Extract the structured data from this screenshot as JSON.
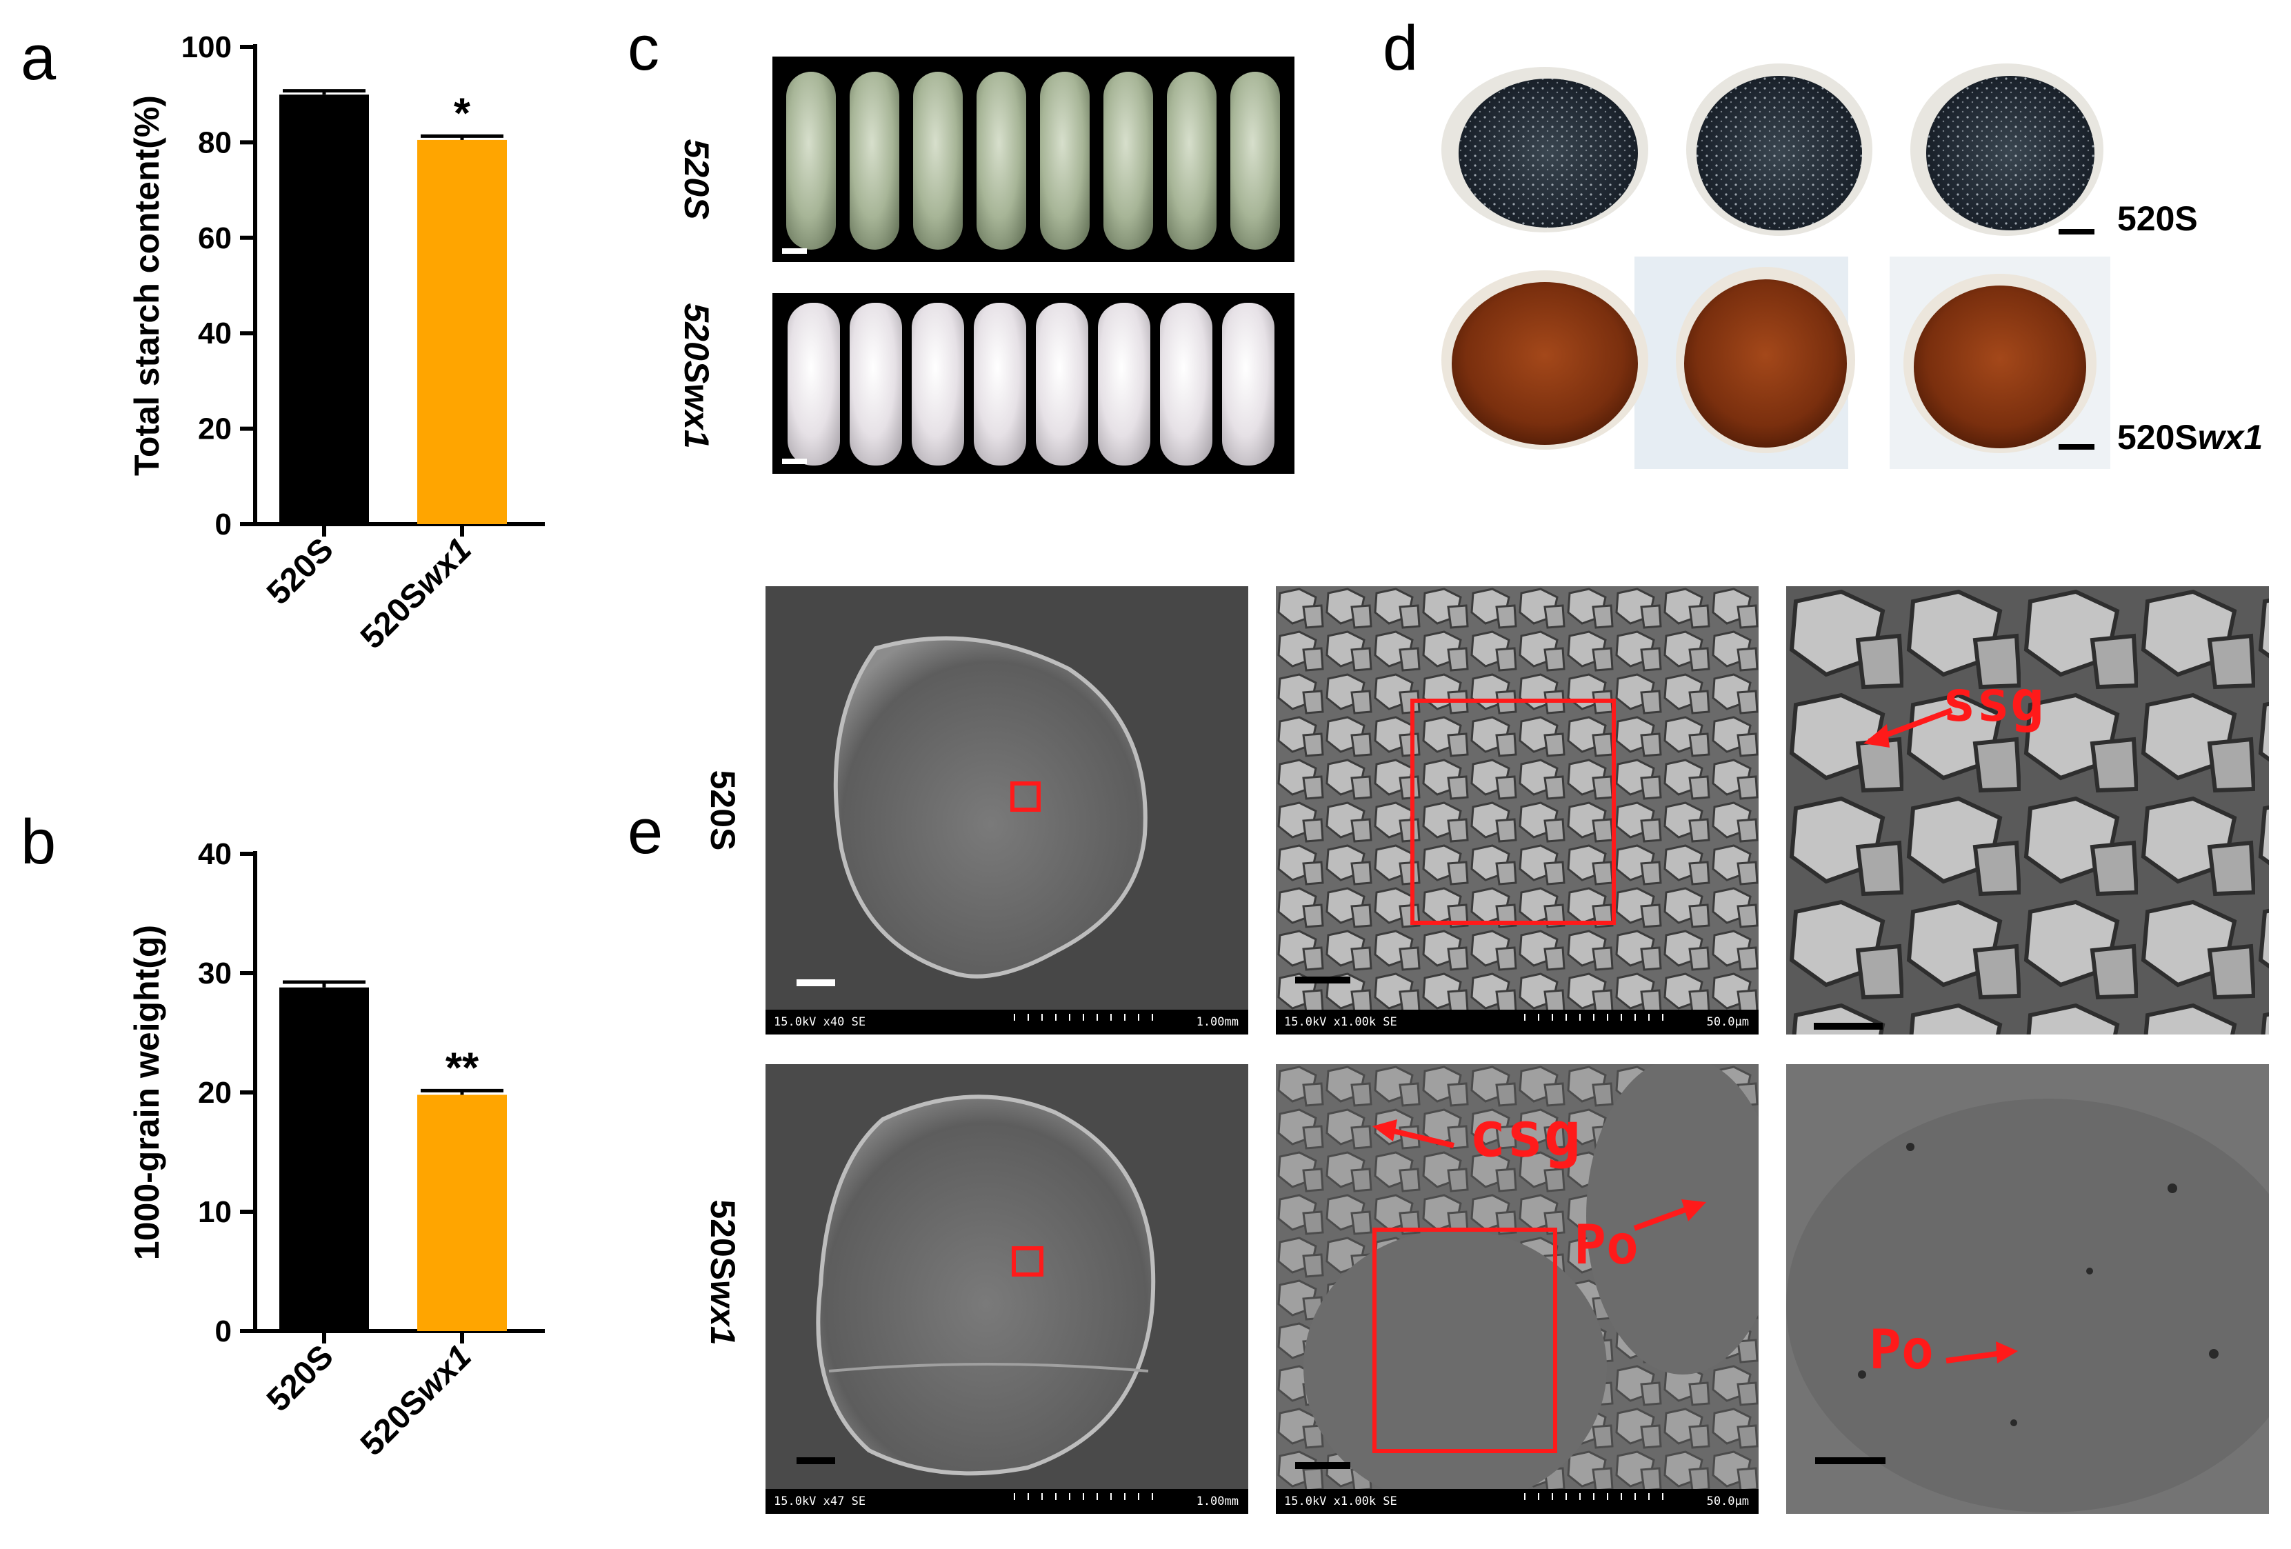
{
  "panels": {
    "a": "a",
    "b": "b",
    "c": "c",
    "d": "d",
    "e": "e"
  },
  "chart_data": [
    {
      "type": "bar",
      "panel": "a",
      "ylabel": "Total starch content(%)",
      "categories": [
        "520S",
        "520Swx1"
      ],
      "category_parts": [
        [
          "520S",
          ""
        ],
        [
          "520S",
          "wx1"
        ]
      ],
      "values": [
        90,
        80.5
      ],
      "errors": [
        0.8,
        0.8
      ],
      "colors": [
        "#000000",
        "#FFA500"
      ],
      "ylim": [
        0,
        100
      ],
      "yticks": [
        0,
        20,
        40,
        60,
        80,
        100
      ],
      "significance": [
        "",
        "*"
      ]
    },
    {
      "type": "bar",
      "panel": "b",
      "ylabel": "1000-grain weight(g)",
      "categories": [
        "520S",
        "520Swx1"
      ],
      "category_parts": [
        [
          "520S",
          ""
        ],
        [
          "520S",
          "wx1"
        ]
      ],
      "values": [
        28.8,
        19.8
      ],
      "errors": [
        0.45,
        0.35
      ],
      "colors": [
        "#000000",
        "#FFA500"
      ],
      "ylim": [
        0,
        40
      ],
      "yticks": [
        0,
        10,
        20,
        30,
        40
      ],
      "significance": [
        "",
        "**"
      ]
    }
  ],
  "panel_c": {
    "row1": "520S",
    "row2_base": "520S",
    "row2_italic": "wx1"
  },
  "panel_d": {
    "row1": "520S",
    "row2_base": "520S",
    "row2_italic": "wx1"
  },
  "panel_e": {
    "row1_label": "520S",
    "row2_label_base": "520S",
    "row2_label_italic": "wx1",
    "sem_row1": [
      {
        "left": "15.0kV x40 SE",
        "right": "1.00mm"
      },
      {
        "left": "15.0kV x1.00k SE",
        "right": "50.0μm"
      },
      {
        "left": "",
        "right": ""
      }
    ],
    "sem_row2": [
      {
        "left": "15.0kV x47 SE",
        "right": "1.00mm"
      },
      {
        "left": "15.0kV x1.00k SE",
        "right": "50.0μm"
      },
      {
        "left": "",
        "right": ""
      }
    ],
    "annotations": {
      "ssg": "ssg",
      "csg": "csg",
      "po1": "Po",
      "po2": "Po"
    }
  }
}
